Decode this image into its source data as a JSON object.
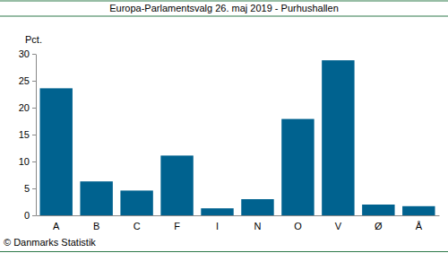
{
  "chart_data": {
    "type": "bar",
    "title": "Europa-Parlamentsvalg 26. maj 2019 - Purhushallen",
    "ylabel": "Pct.",
    "source": "© Danmarks Statistik",
    "categories": [
      "A",
      "B",
      "C",
      "F",
      "I",
      "N",
      "O",
      "V",
      "Ø",
      "Å"
    ],
    "values": [
      23.6,
      6.3,
      4.6,
      11.1,
      1.3,
      3.0,
      17.9,
      28.8,
      2.0,
      1.7
    ],
    "color": "#00628f",
    "ylim": [
      0,
      30
    ],
    "yticks": [
      0,
      5,
      10,
      15,
      20,
      25,
      30
    ],
    "grid": false
  }
}
